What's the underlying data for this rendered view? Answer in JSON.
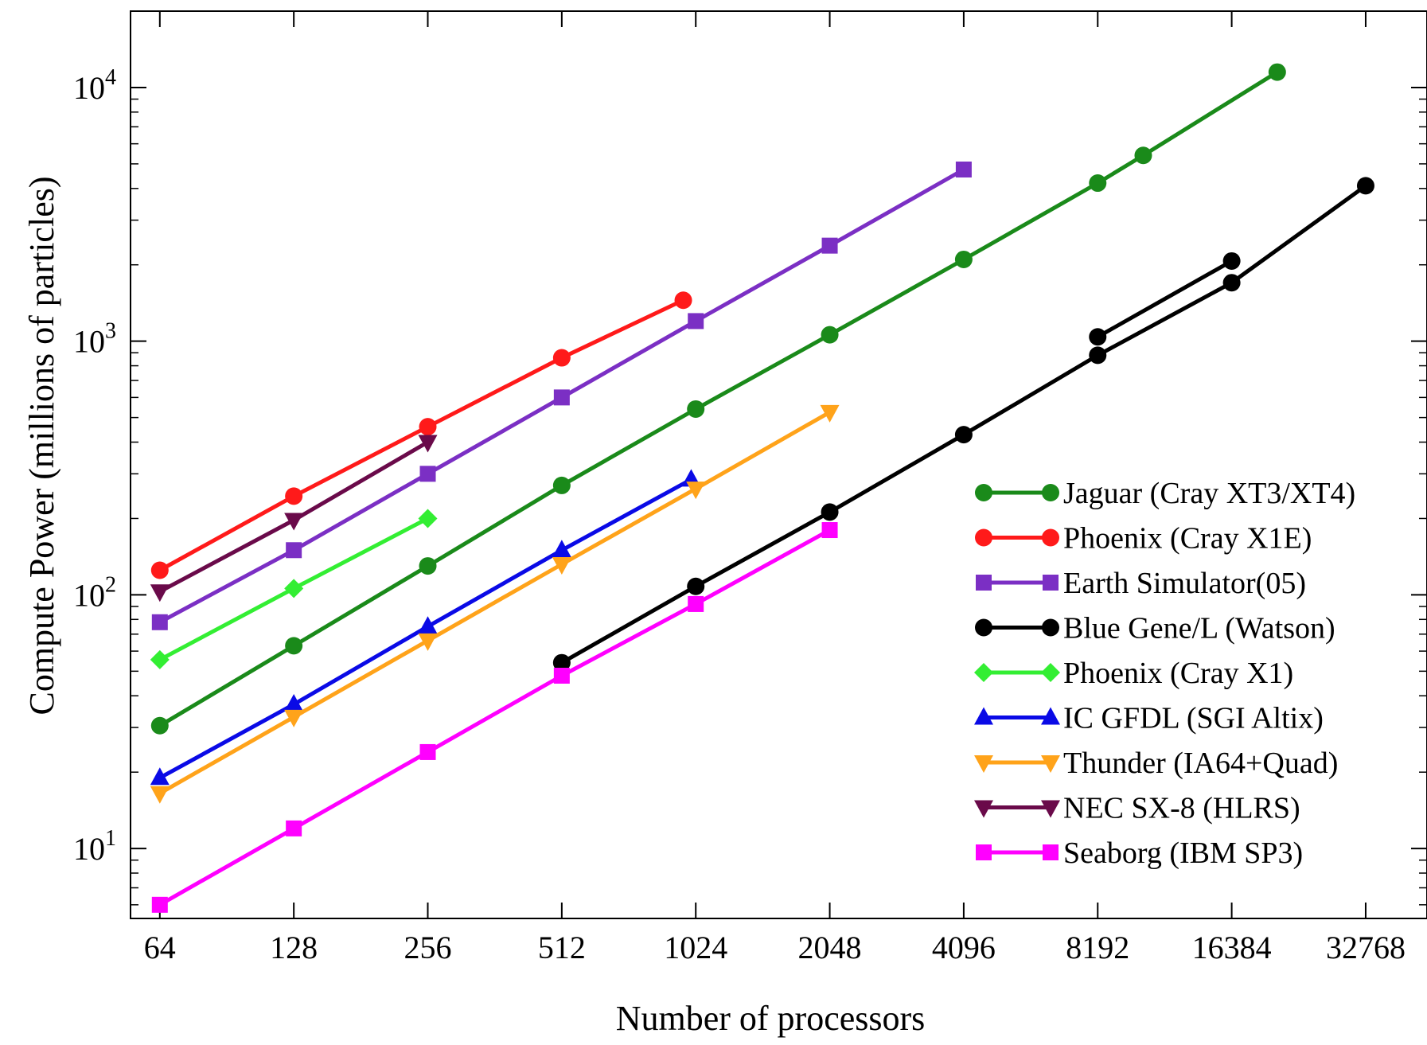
{
  "chart_data": {
    "type": "line",
    "title": "",
    "xlabel": "Number of processors",
    "ylabel": "Compute Power (millions of particles)",
    "x_scale": "log2",
    "y_scale": "log10",
    "xlim": [
      55,
      45000
    ],
    "ylim": [
      5.3,
      20000
    ],
    "x_ticks": [
      64,
      128,
      256,
      512,
      1024,
      2048,
      4096,
      8192,
      16384,
      32768
    ],
    "x_tick_labels": [
      "64",
      "128",
      "256",
      "512",
      "1024",
      "2048",
      "4096",
      "8192",
      "16384",
      "32768"
    ],
    "y_ticks": [
      {
        "value": 10,
        "base": "10",
        "exp": "1"
      },
      {
        "value": 100,
        "base": "10",
        "exp": "2"
      },
      {
        "value": 1000,
        "base": "10",
        "exp": "3"
      },
      {
        "value": 10000,
        "base": "10",
        "exp": "4"
      }
    ],
    "grid": false,
    "legend_position": "bottom-right",
    "series": [
      {
        "name": "Jaguar (Cray XT3/XT4)",
        "color": "#1a8a1a",
        "marker": "circle",
        "x": [
          64,
          128,
          256,
          512,
          1024,
          2048,
          4096,
          8192,
          10368,
          20736
        ],
        "y": [
          30.5,
          63,
          130,
          270,
          540,
          1060,
          2100,
          4200,
          5400,
          11500
        ]
      },
      {
        "name": "Phoenix (Cray X1E)",
        "color": "#ff1a1a",
        "marker": "circle",
        "x": [
          64,
          128,
          256,
          512,
          960
        ],
        "y": [
          125,
          245,
          460,
          860,
          1450
        ]
      },
      {
        "name": "Earth Simulator(05)",
        "color": "#7b2fc4",
        "marker": "square",
        "x": [
          64,
          128,
          256,
          512,
          1024,
          2048,
          4096
        ],
        "y": [
          78,
          150,
          300,
          600,
          1200,
          2380,
          4750
        ]
      },
      {
        "name": "Blue Gene/L (Watson)",
        "color": "#000000",
        "marker": "circle",
        "x": [
          512,
          1024,
          2048,
          4096,
          8192,
          16384,
          32768
        ],
        "y": [
          54,
          108,
          212,
          428,
          880,
          1700,
          4100
        ]
      },
      {
        "name": "Blue Gene/L (Watson)",
        "color": "#000000",
        "marker": "circle",
        "legend": false,
        "x": [
          8192,
          16384
        ],
        "y": [
          1040,
          2070
        ]
      },
      {
        "name": "Phoenix (Cray X1)",
        "color": "#33ee33",
        "marker": "diamond",
        "x": [
          64,
          128,
          256
        ],
        "y": [
          55.5,
          106,
          200
        ]
      },
      {
        "name": "IC GFDL (SGI Altix)",
        "color": "#0a0ae6",
        "marker": "triangle-up",
        "x": [
          64,
          128,
          256,
          512,
          1000
        ],
        "y": [
          19,
          37,
          75,
          150,
          285
        ]
      },
      {
        "name": "Thunder (IA64+Quad)",
        "color": "#ffa31a",
        "marker": "triangle-down",
        "x": [
          64,
          128,
          256,
          512,
          1024,
          2048
        ],
        "y": [
          16.5,
          33,
          66,
          132,
          262,
          525
        ]
      },
      {
        "name": "NEC SX-8 (HLRS)",
        "color": "#6a0a4a",
        "marker": "triangle-down",
        "x": [
          64,
          128,
          256
        ],
        "y": [
          103,
          197,
          400
        ]
      },
      {
        "name": "Seaborg (IBM SP3)",
        "color": "#ff00ff",
        "marker": "square",
        "x": [
          64,
          128,
          256,
          512,
          1024,
          2048
        ],
        "y": [
          6,
          12,
          24,
          48,
          92,
          180
        ]
      }
    ]
  }
}
